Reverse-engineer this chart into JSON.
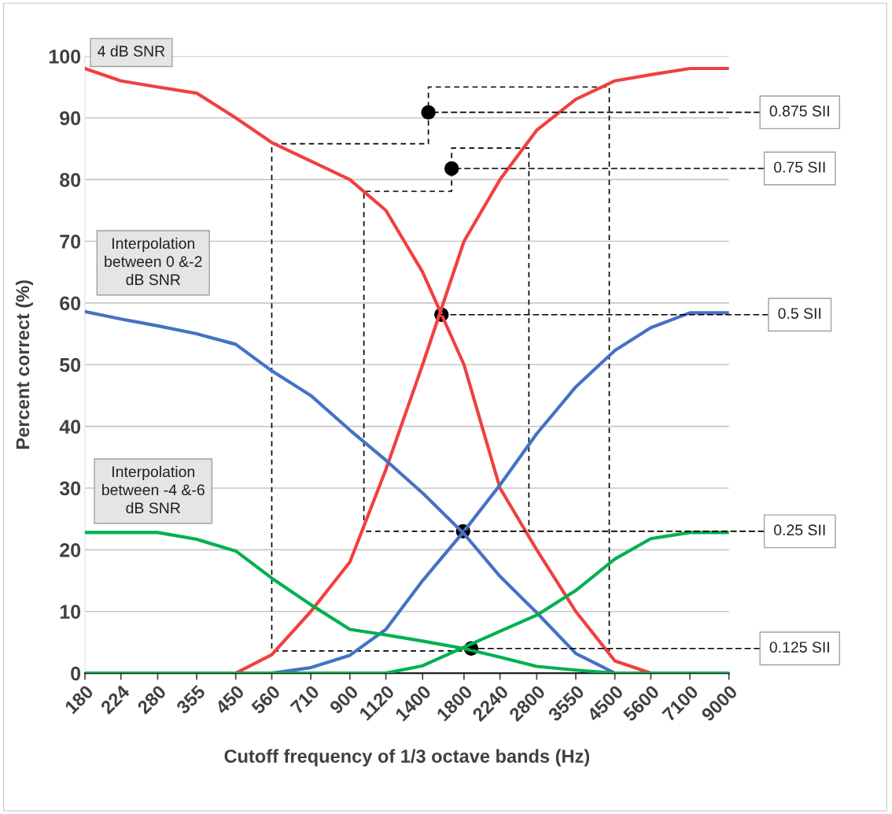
{
  "chart_data": {
    "type": "line",
    "xlabel": "Cutoff frequency of 1/3 octave bands (Hz)",
    "ylabel": "Percent correct (%)",
    "x": [
      180,
      224,
      280,
      355,
      450,
      560,
      710,
      900,
      1120,
      1400,
      1800,
      2240,
      2800,
      3550,
      4500,
      5600,
      7100,
      9000
    ],
    "log": "x",
    "xlim": [
      180,
      9000
    ],
    "xticks": [
      180,
      224,
      280,
      355,
      450,
      560,
      710,
      900,
      1120,
      1400,
      1800,
      2240,
      2800,
      3550,
      4500,
      5600,
      7100,
      9000
    ],
    "ylim": [
      0,
      100
    ],
    "yticks": [
      0,
      10,
      20,
      30,
      40,
      50,
      60,
      70,
      80,
      90,
      100
    ],
    "grid": "y",
    "series": [
      {
        "color": "#f04040",
        "values": [
          98,
          96,
          95,
          94,
          90,
          86,
          83,
          80,
          75,
          65,
          50,
          30,
          20,
          10,
          2,
          0,
          null,
          null
        ]
      },
      {
        "color": "#f04040",
        "values": [
          null,
          null,
          null,
          null,
          0,
          3,
          10,
          18,
          33,
          50,
          70,
          80,
          88,
          93,
          96,
          97,
          98,
          98
        ]
      },
      {
        "color": "#4472c4",
        "values": [
          58.6,
          57.4,
          56.3,
          55,
          53.3,
          49,
          45,
          39.4,
          34.5,
          29.2,
          22.6,
          15.7,
          9.8,
          3.2,
          0,
          null,
          null,
          null
        ]
      },
      {
        "color": "#4472c4",
        "values": [
          null,
          null,
          null,
          null,
          null,
          0,
          0.9,
          2.9,
          7.1,
          15,
          23,
          30.5,
          38.8,
          46.4,
          52.3,
          56,
          58.4,
          58.4
        ]
      },
      {
        "color": "#00b050",
        "values": [
          0,
          0,
          0,
          0,
          0,
          0,
          0,
          0,
          0,
          1.2,
          4.2,
          6.8,
          9.4,
          13.4,
          18.5,
          21.8,
          22.8,
          22.8
        ]
      },
      {
        "color": "#00b050",
        "values": [
          22.8,
          22.8,
          22.8,
          21.7,
          19.8,
          15.4,
          11.1,
          7.1,
          6.2,
          5.2,
          4,
          2.6,
          1.1,
          0.5,
          0,
          0,
          0,
          0
        ]
      },
      {
        "color": "#000000",
        "line_style": "dashed",
        "x": [
          1880,
          560,
          560,
          1450,
          1450,
          4350,
          4350
        ],
        "values": [
          3.6,
          3.6,
          85.8,
          85.8,
          95,
          95,
          3.6
        ]
      },
      {
        "color": "#000000",
        "line_style": "dashed",
        "x": [
          1790,
          980,
          980,
          1670,
          1670,
          2670,
          2670
        ],
        "values": [
          23,
          23,
          78.1,
          78.1,
          85.1,
          85.1,
          23
        ]
      },
      {
        "type": "scatter",
        "color": "#000000",
        "marker": "circle",
        "x": [
          1450,
          1670,
          1570,
          1790,
          1880
        ],
        "values": [
          90.9,
          81.8,
          58.1,
          23,
          4
        ]
      }
    ],
    "annotations": [
      "4 dB SNR",
      "Interpolation\nbetween 0 &-2\ndB SNR",
      "Interpolation\nbetween -4 &-6\ndB SNR",
      {
        "text": "0.875 SII",
        "x": 1450,
        "y": 90.9
      },
      {
        "text": "0.75 SII",
        "x": 1670,
        "y": 81.8
      },
      {
        "text": "0.5 SII",
        "x": 1570,
        "y": 58.1
      },
      {
        "text": "0.25 SII",
        "x": 1790,
        "y": 23
      },
      {
        "text": "0.125 SII",
        "x": 1880,
        "y": 4
      }
    ]
  }
}
